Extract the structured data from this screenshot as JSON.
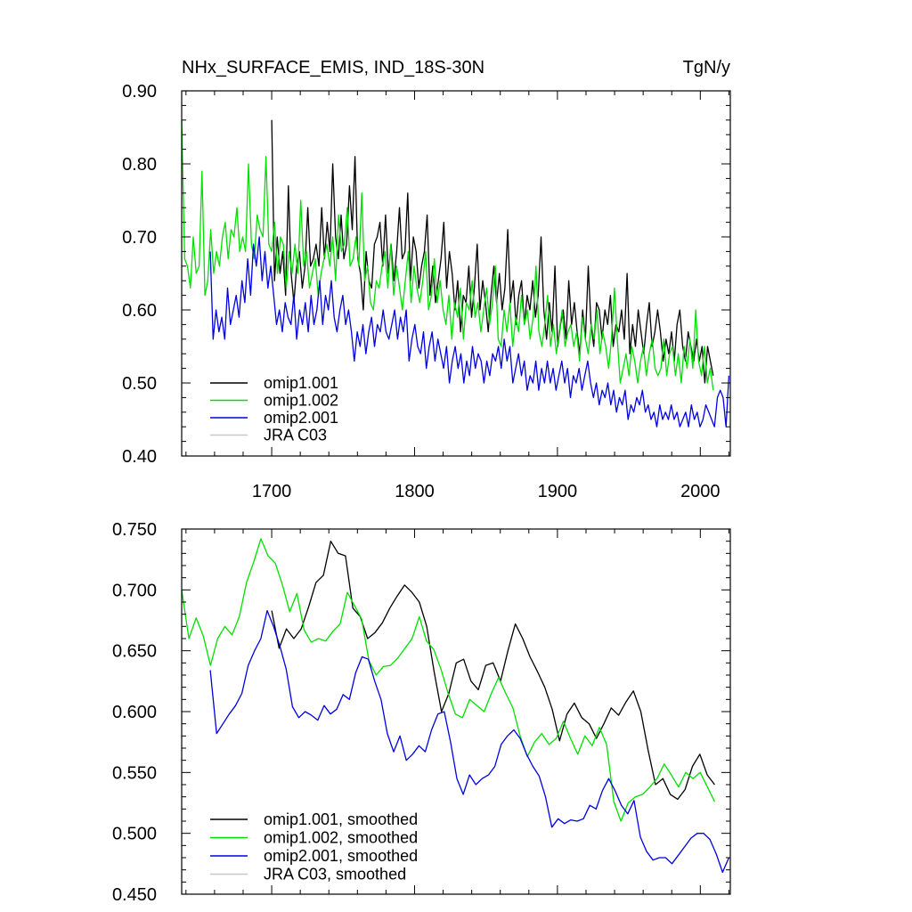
{
  "chart_data": [
    {
      "type": "line",
      "title": "NHx_SURFACE_EMIS, IND_18S-30N",
      "units": "TgN/y",
      "xlim": [
        1637,
        2021
      ],
      "ylim": [
        0.4,
        0.9
      ],
      "xticks": [
        1700,
        1800,
        1900,
        2000
      ],
      "yticks": [
        0.4,
        0.5,
        0.6,
        0.7,
        0.8,
        0.9
      ],
      "ytick_labels": [
        "0.40",
        "0.50",
        "0.60",
        "0.70",
        "0.80",
        "0.90"
      ],
      "legend_position": "bottom-left",
      "series": [
        {
          "name": "omip1.001",
          "color": "#000000",
          "x_start": 1700,
          "x_end": 2009,
          "step": 2,
          "values": [
            0.86,
            0.64,
            0.7,
            0.65,
            0.68,
            0.62,
            0.77,
            0.65,
            0.61,
            0.66,
            0.68,
            0.63,
            0.66,
            0.74,
            0.66,
            0.67,
            0.69,
            0.66,
            0.74,
            0.67,
            0.72,
            0.68,
            0.8,
            0.7,
            0.67,
            0.73,
            0.67,
            0.69,
            0.77,
            0.71,
            0.81,
            0.67,
            0.65,
            0.6,
            0.68,
            0.64,
            0.63,
            0.69,
            0.7,
            0.72,
            0.66,
            0.73,
            0.65,
            0.69,
            0.64,
            0.68,
            0.74,
            0.67,
            0.68,
            0.76,
            0.64,
            0.7,
            0.68,
            0.63,
            0.66,
            0.68,
            0.73,
            0.62,
            0.66,
            0.61,
            0.64,
            0.67,
            0.72,
            0.63,
            0.68,
            0.65,
            0.6,
            0.64,
            0.57,
            0.62,
            0.61,
            0.66,
            0.59,
            0.63,
            0.69,
            0.6,
            0.64,
            0.61,
            0.57,
            0.62,
            0.66,
            0.61,
            0.65,
            0.6,
            0.63,
            0.71,
            0.61,
            0.64,
            0.58,
            0.62,
            0.64,
            0.58,
            0.62,
            0.6,
            0.64,
            0.59,
            0.62,
            0.7,
            0.6,
            0.56,
            0.61,
            0.57,
            0.66,
            0.55,
            0.58,
            0.6,
            0.56,
            0.64,
            0.58,
            0.61,
            0.57,
            0.54,
            0.6,
            0.56,
            0.66,
            0.58,
            0.55,
            0.61,
            0.6,
            0.56,
            0.6,
            0.58,
            0.62,
            0.55,
            0.58,
            0.57,
            0.6,
            0.56,
            0.65,
            0.54,
            0.58,
            0.55,
            0.6,
            0.57,
            0.54,
            0.58,
            0.61,
            0.55,
            0.57,
            0.6,
            0.57,
            0.53,
            0.56,
            0.54,
            0.57,
            0.53,
            0.58,
            0.6,
            0.55,
            0.53,
            0.57,
            0.55,
            0.53,
            0.56,
            0.53,
            0.55,
            0.5,
            0.55,
            0.53,
            0.51
          ]
        },
        {
          "name": "omip1.002",
          "color": "#00e000",
          "x_start": 1637,
          "x_end": 2009,
          "step": 2,
          "values": [
            0.86,
            0.67,
            0.66,
            0.63,
            0.7,
            0.65,
            0.66,
            0.79,
            0.62,
            0.64,
            0.71,
            0.65,
            0.68,
            0.66,
            0.7,
            0.72,
            0.67,
            0.71,
            0.7,
            0.74,
            0.68,
            0.7,
            0.68,
            0.8,
            0.69,
            0.67,
            0.73,
            0.71,
            0.7,
            0.81,
            0.69,
            0.68,
            0.72,
            0.65,
            0.7,
            0.69,
            0.63,
            0.68,
            0.65,
            0.69,
            0.65,
            0.75,
            0.66,
            0.68,
            0.63,
            0.65,
            0.67,
            0.62,
            0.65,
            0.67,
            0.69,
            0.66,
            0.7,
            0.64,
            0.73,
            0.68,
            0.69,
            0.74,
            0.66,
            0.67,
            0.7,
            0.66,
            0.76,
            0.64,
            0.66,
            0.61,
            0.6,
            0.64,
            0.63,
            0.66,
            0.68,
            0.63,
            0.69,
            0.62,
            0.66,
            0.63,
            0.6,
            0.64,
            0.68,
            0.61,
            0.66,
            0.63,
            0.61,
            0.64,
            0.68,
            0.6,
            0.62,
            0.67,
            0.61,
            0.64,
            0.6,
            0.58,
            0.62,
            0.56,
            0.61,
            0.59,
            0.63,
            0.56,
            0.61,
            0.6,
            0.64,
            0.59,
            0.61,
            0.57,
            0.6,
            0.63,
            0.58,
            0.61,
            0.66,
            0.56,
            0.55,
            0.6,
            0.57,
            0.61,
            0.55,
            0.59,
            0.57,
            0.62,
            0.58,
            0.6,
            0.56,
            0.59,
            0.66,
            0.57,
            0.55,
            0.58,
            0.62,
            0.55,
            0.58,
            0.54,
            0.57,
            0.6,
            0.55,
            0.57,
            0.58,
            0.55,
            0.57,
            0.53,
            0.59,
            0.56,
            0.54,
            0.58,
            0.56,
            0.6,
            0.54,
            0.57,
            0.55,
            0.52,
            0.56,
            0.63,
            0.56,
            0.5,
            0.52,
            0.54,
            0.51,
            0.55,
            0.53,
            0.5,
            0.53,
            0.55,
            0.51,
            0.54,
            0.56,
            0.52,
            0.51,
            0.52,
            0.56,
            0.51,
            0.54,
            0.55,
            0.51,
            0.54,
            0.5,
            0.55,
            0.52,
            0.56,
            0.52,
            0.6,
            0.53,
            0.51,
            0.55,
            0.5,
            0.52,
            0.49
          ]
        },
        {
          "name": "omip2.001",
          "color": "#0000e0",
          "x_start": 1657,
          "x_end": 2020,
          "step": 2,
          "values": [
            0.68,
            0.56,
            0.6,
            0.57,
            0.59,
            0.56,
            0.63,
            0.58,
            0.6,
            0.62,
            0.59,
            0.64,
            0.61,
            0.67,
            0.62,
            0.69,
            0.66,
            0.7,
            0.64,
            0.68,
            0.63,
            0.66,
            0.62,
            0.58,
            0.6,
            0.57,
            0.61,
            0.59,
            0.58,
            0.62,
            0.56,
            0.6,
            0.58,
            0.61,
            0.57,
            0.62,
            0.58,
            0.6,
            0.64,
            0.58,
            0.62,
            0.6,
            0.64,
            0.59,
            0.57,
            0.6,
            0.62,
            0.58,
            0.6,
            0.57,
            0.53,
            0.57,
            0.55,
            0.58,
            0.54,
            0.57,
            0.59,
            0.55,
            0.58,
            0.57,
            0.6,
            0.57,
            0.56,
            0.58,
            0.6,
            0.56,
            0.59,
            0.57,
            0.6,
            0.53,
            0.56,
            0.58,
            0.55,
            0.54,
            0.57,
            0.52,
            0.55,
            0.57,
            0.53,
            0.56,
            0.54,
            0.52,
            0.55,
            0.5,
            0.53,
            0.55,
            0.52,
            0.54,
            0.5,
            0.53,
            0.51,
            0.55,
            0.52,
            0.54,
            0.53,
            0.5,
            0.53,
            0.51,
            0.54,
            0.53,
            0.55,
            0.52,
            0.56,
            0.53,
            0.55,
            0.5,
            0.52,
            0.54,
            0.51,
            0.53,
            0.49,
            0.51,
            0.5,
            0.53,
            0.49,
            0.52,
            0.5,
            0.53,
            0.5,
            0.52,
            0.49,
            0.51,
            0.53,
            0.5,
            0.52,
            0.48,
            0.51,
            0.5,
            0.52,
            0.49,
            0.51,
            0.53,
            0.5,
            0.48,
            0.5,
            0.47,
            0.49,
            0.48,
            0.5,
            0.47,
            0.49,
            0.46,
            0.48,
            0.47,
            0.49,
            0.45,
            0.47,
            0.46,
            0.48,
            0.47,
            0.49,
            0.46,
            0.47,
            0.45,
            0.46,
            0.44,
            0.47,
            0.45,
            0.46,
            0.45,
            0.47,
            0.45,
            0.46,
            0.44,
            0.45,
            0.46,
            0.44,
            0.47,
            0.45,
            0.46,
            0.44,
            0.45,
            0.47,
            0.46,
            0.45,
            0.44,
            0.48,
            0.49,
            0.48,
            0.44,
            0.51
          ]
        },
        {
          "name": "JRA C03",
          "color": "#c8c8c8",
          "values": []
        }
      ]
    },
    {
      "type": "line",
      "title": "",
      "xlim": [
        1637,
        2021
      ],
      "ylim": [
        0.45,
        0.75
      ],
      "xticks": [
        1700,
        1800,
        1900,
        2000
      ],
      "yticks": [
        0.45,
        0.5,
        0.55,
        0.6,
        0.65,
        0.7,
        0.75
      ],
      "ytick_labels": [
        "0.450",
        "0.500",
        "0.550",
        "0.600",
        "0.650",
        "0.700",
        "0.750"
      ],
      "legend_position": "bottom-left",
      "series": [
        {
          "name": "omip1.001, smoothed",
          "color": "#000000",
          "x_start": 1700,
          "x_end": 2010,
          "step": 5,
          "values": [
            0.683,
            0.652,
            0.668,
            0.66,
            0.668,
            0.686,
            0.706,
            0.712,
            0.74,
            0.73,
            0.728,
            0.685,
            0.678,
            0.66,
            0.665,
            0.673,
            0.685,
            0.695,
            0.704,
            0.698,
            0.69,
            0.67,
            0.633,
            0.6,
            0.615,
            0.64,
            0.643,
            0.625,
            0.618,
            0.638,
            0.64,
            0.625,
            0.65,
            0.672,
            0.66,
            0.645,
            0.633,
            0.62,
            0.602,
            0.576,
            0.598,
            0.607,
            0.595,
            0.59,
            0.578,
            0.59,
            0.603,
            0.597,
            0.608,
            0.617,
            0.6,
            0.568,
            0.54,
            0.545,
            0.532,
            0.528,
            0.536,
            0.555,
            0.565,
            0.548,
            0.54
          ]
        },
        {
          "name": "omip1.002, smoothed",
          "color": "#00e000",
          "x_start": 1637,
          "x_end": 2010,
          "step": 5,
          "values": [
            0.7,
            0.66,
            0.677,
            0.662,
            0.638,
            0.66,
            0.67,
            0.663,
            0.678,
            0.706,
            0.723,
            0.742,
            0.728,
            0.722,
            0.704,
            0.682,
            0.697,
            0.667,
            0.657,
            0.66,
            0.658,
            0.666,
            0.672,
            0.698,
            0.687,
            0.676,
            0.642,
            0.63,
            0.637,
            0.638,
            0.644,
            0.652,
            0.66,
            0.678,
            0.658,
            0.651,
            0.635,
            0.615,
            0.598,
            0.595,
            0.61,
            0.605,
            0.6,
            0.615,
            0.628,
            0.615,
            0.603,
            0.58,
            0.563,
            0.575,
            0.582,
            0.573,
            0.578,
            0.592,
            0.578,
            0.565,
            0.58,
            0.572,
            0.587,
            0.573,
            0.526,
            0.51,
            0.525,
            0.53,
            0.532,
            0.538,
            0.545,
            0.557,
            0.548,
            0.538,
            0.55,
            0.545,
            0.55,
            0.538,
            0.526
          ]
        },
        {
          "name": "omip2.001, smoothed",
          "color": "#0000e0",
          "x_start": 1657,
          "x_end": 2020,
          "step": 5,
          "values": [
            0.634,
            0.582,
            0.59,
            0.598,
            0.605,
            0.615,
            0.638,
            0.65,
            0.66,
            0.683,
            0.67,
            0.654,
            0.635,
            0.604,
            0.595,
            0.6,
            0.597,
            0.593,
            0.605,
            0.598,
            0.602,
            0.614,
            0.61,
            0.632,
            0.645,
            0.643,
            0.625,
            0.61,
            0.582,
            0.567,
            0.58,
            0.56,
            0.565,
            0.572,
            0.567,
            0.585,
            0.598,
            0.6,
            0.575,
            0.545,
            0.532,
            0.548,
            0.54,
            0.545,
            0.548,
            0.555,
            0.573,
            0.58,
            0.585,
            0.578,
            0.565,
            0.555,
            0.547,
            0.53,
            0.505,
            0.512,
            0.508,
            0.511,
            0.51,
            0.512,
            0.523,
            0.52,
            0.535,
            0.545,
            0.535,
            0.523,
            0.516,
            0.527,
            0.497,
            0.485,
            0.478,
            0.48,
            0.48,
            0.475,
            0.482,
            0.489,
            0.496,
            0.5,
            0.5,
            0.495,
            0.483,
            0.468,
            0.48
          ]
        },
        {
          "name": "JRA C03, smoothed",
          "color": "#c8c8c8",
          "values": []
        }
      ]
    }
  ]
}
